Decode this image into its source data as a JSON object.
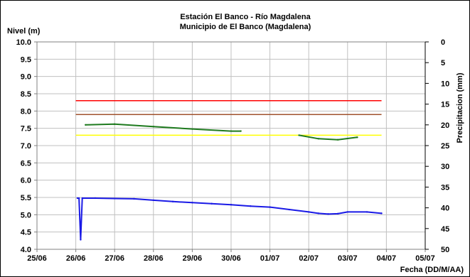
{
  "chart_data": {
    "type": "line",
    "title": "Estación El Banco - Río Magdalena",
    "subtitle": "Municipio de El Banco (Magdalena)",
    "ylabel": "Nivel (m)",
    "y2label": "Precipitacion (mm)",
    "xlabel": "Fecha (DD/M/AA)",
    "ylim": [
      4.0,
      10.0
    ],
    "y2lim": [
      0,
      50
    ],
    "y2_inverted": true,
    "xlim": [
      "25/06",
      "05/07"
    ],
    "grid": true,
    "legend": "none",
    "x_ticks": [
      "25/06",
      "26/06",
      "27/06",
      "28/06",
      "29/06",
      "30/06",
      "01/07",
      "02/07",
      "03/07",
      "04/07",
      "05/07"
    ],
    "y_ticks": [
      "4.0",
      "4.5",
      "5.0",
      "5.5",
      "6.0",
      "6.5",
      "7.0",
      "7.5",
      "8.0",
      "8.5",
      "9.0",
      "9.5",
      "10.0"
    ],
    "y2_ticks": [
      "0",
      "5",
      "10",
      "15",
      "20",
      "25",
      "30",
      "35",
      "40",
      "45",
      "50"
    ],
    "thresholds": [
      {
        "value": 8.3,
        "color": "#ff0000",
        "x_start": "26/06",
        "x_end": "03/07 21:00"
      },
      {
        "value": 7.9,
        "color": "#a0522d",
        "x_start": "26/06",
        "x_end": "03/07 21:00"
      },
      {
        "value": 7.3,
        "color": "#ffff00",
        "x_start": "26/06",
        "x_end": "03/07 21:00"
      }
    ],
    "series": [
      {
        "color": "#1a1ae6",
        "points": [
          [
            "26/06 01:00",
            5.48
          ],
          [
            "26/06 02:00",
            5.48
          ],
          [
            "26/06 03:00",
            4.28
          ],
          [
            "26/06 04:00",
            5.48
          ],
          [
            "26/06 12:00",
            5.48
          ],
          [
            "27/06 00:00",
            5.47
          ],
          [
            "27/06 12:00",
            5.46
          ],
          [
            "28/06 00:00",
            5.42
          ],
          [
            "28/06 12:00",
            5.38
          ],
          [
            "29/06 00:00",
            5.35
          ],
          [
            "29/06 12:00",
            5.32
          ],
          [
            "30/06 00:00",
            5.29
          ],
          [
            "30/06 12:00",
            5.25
          ],
          [
            "01/07 00:00",
            5.22
          ],
          [
            "01/07 12:00",
            5.15
          ],
          [
            "02/07 00:00",
            5.08
          ],
          [
            "02/07 06:00",
            5.04
          ],
          [
            "02/07 12:00",
            5.02
          ],
          [
            "02/07 18:00",
            5.03
          ],
          [
            "03/07 00:00",
            5.08
          ],
          [
            "03/07 12:00",
            5.08
          ],
          [
            "03/07 21:00",
            5.04
          ]
        ]
      },
      {
        "color": "#1e7a1e",
        "points": [
          [
            "26/06 06:00",
            7.6
          ],
          [
            "27/06 00:00",
            7.62
          ],
          [
            "28/06 00:00",
            7.55
          ],
          [
            "29/06 00:00",
            7.48
          ],
          [
            "30/06 00:00",
            7.42
          ],
          [
            "30/06 06:00",
            7.42
          ]
        ]
      },
      {
        "color": "#1e7a1e",
        "points": [
          [
            "01/07 18:00",
            7.3
          ],
          [
            "02/07 06:00",
            7.2
          ],
          [
            "02/07 18:00",
            7.17
          ],
          [
            "03/07 06:00",
            7.24
          ]
        ]
      }
    ]
  }
}
